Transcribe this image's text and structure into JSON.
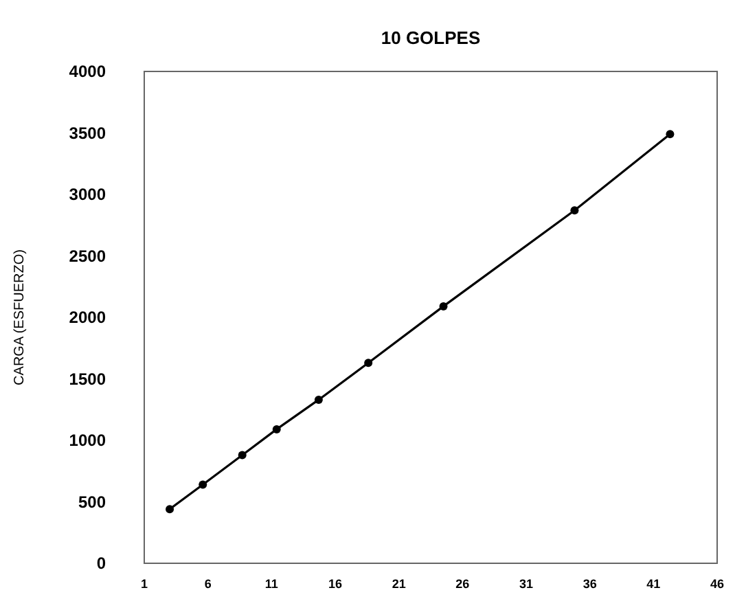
{
  "chart_data": {
    "type": "line",
    "title": "10 GOLPES",
    "ylabel": "CARGA (ESFUERZO)",
    "x": [
      3,
      5.6,
      8.7,
      11.4,
      14.7,
      18.6,
      24.5,
      34.8,
      42.3
    ],
    "series": [
      {
        "color": "#000000",
        "values": [
          440,
          640,
          880,
          1090,
          1330,
          1630,
          2090,
          2870,
          3490
        ]
      }
    ],
    "xlim": [
      1,
      46
    ],
    "xticks": [
      1,
      6,
      11,
      16,
      21,
      26,
      31,
      36,
      41,
      46
    ],
    "ylim": [
      0,
      4000
    ],
    "yticks": [
      0,
      500,
      1000,
      1500,
      2000,
      2500,
      3000,
      3500,
      4000
    ],
    "marker": "circle",
    "line_style": "solid"
  }
}
